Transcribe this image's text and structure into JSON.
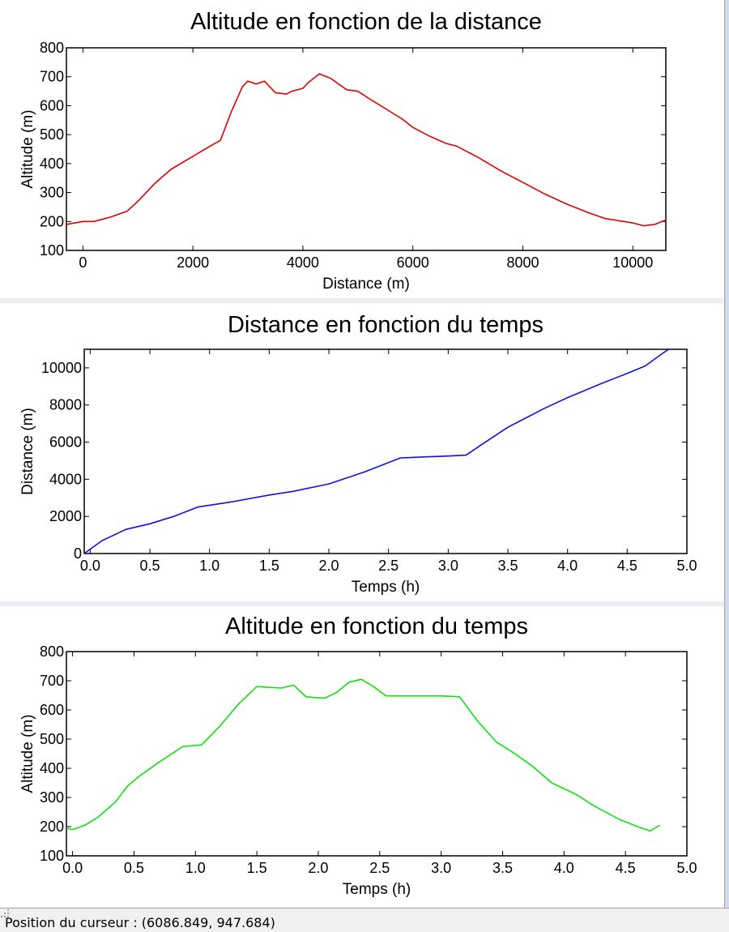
{
  "status_bar": {
    "cursor_label": "Position du curseur : (6086.849, 947.684)"
  },
  "chart_data": [
    {
      "type": "line",
      "title": "Altitude en fonction de la distance",
      "xlabel": "Distance (m)",
      "ylabel": "Altitude (m)",
      "xlim": [
        -300,
        10600
      ],
      "ylim": [
        100,
        800
      ],
      "x_ticks": [
        0,
        2000,
        4000,
        6000,
        8000,
        10000
      ],
      "x_tick_labels": [
        "0",
        "2000",
        "4000",
        "6000",
        "8000",
        "10000"
      ],
      "y_ticks": [
        100,
        200,
        300,
        400,
        500,
        600,
        700,
        800
      ],
      "y_tick_labels": [
        "100",
        "200",
        "300",
        "400",
        "500",
        "600",
        "700",
        "800"
      ],
      "grid": false,
      "color": "#e00000",
      "series": [
        {
          "x": [
            -300,
            0,
            200,
            500,
            800,
            1000,
            1300,
            1600,
            2000,
            2400,
            2500,
            2700,
            2900,
            3000,
            3150,
            3300,
            3500,
            3700,
            3800,
            4000,
            4100,
            4300,
            4500,
            4800,
            5000,
            5200,
            5500,
            5800,
            6000,
            6300,
            6600,
            6800,
            7200,
            7600,
            8000,
            8400,
            8800,
            9200,
            9500,
            10000,
            10200,
            10400,
            10600
          ],
          "y": [
            190,
            200,
            200,
            215,
            235,
            270,
            330,
            380,
            425,
            470,
            480,
            580,
            665,
            685,
            675,
            685,
            645,
            640,
            650,
            660,
            680,
            710,
            695,
            655,
            650,
            625,
            590,
            555,
            525,
            495,
            470,
            460,
            420,
            375,
            335,
            295,
            260,
            230,
            210,
            195,
            185,
            190,
            205
          ]
        }
      ]
    },
    {
      "type": "line",
      "title": "Distance en fonction du temps",
      "xlabel": "Temps (h)",
      "ylabel": "Distance (m)",
      "xlim": [
        -0.05,
        5.0
      ],
      "ylim": [
        0,
        11000
      ],
      "x_ticks": [
        0.0,
        0.5,
        1.0,
        1.5,
        2.0,
        2.5,
        3.0,
        3.5,
        4.0,
        4.5,
        5.0
      ],
      "x_tick_labels": [
        "0.0",
        "0.5",
        "1.0",
        "1.5",
        "2.0",
        "2.5",
        "3.0",
        "3.5",
        "4.0",
        "4.5",
        "5.0"
      ],
      "y_ticks": [
        0,
        2000,
        4000,
        6000,
        8000,
        10000
      ],
      "y_tick_labels": [
        "0",
        "2000",
        "4000",
        "6000",
        "8000",
        "10000"
      ],
      "grid": false,
      "color": "#1010e0",
      "series": [
        {
          "x": [
            -0.05,
            0.1,
            0.3,
            0.5,
            0.7,
            0.9,
            1.0,
            1.2,
            1.5,
            1.7,
            2.0,
            2.3,
            2.5,
            2.6,
            3.0,
            3.15,
            3.3,
            3.5,
            3.8,
            4.0,
            4.3,
            4.5,
            4.65,
            4.8,
            4.85
          ],
          "y": [
            0,
            700,
            1300,
            1600,
            2000,
            2500,
            2600,
            2800,
            3150,
            3350,
            3750,
            4400,
            4900,
            5150,
            5250,
            5300,
            5950,
            6800,
            7800,
            8400,
            9200,
            9700,
            10100,
            10800,
            11000
          ]
        }
      ]
    },
    {
      "type": "line",
      "title": "Altitude en fonction du temps",
      "xlabel": "Temps (h)",
      "ylabel": "Altitude (m)",
      "xlim": [
        -0.05,
        5.0
      ],
      "ylim": [
        100,
        800
      ],
      "x_ticks": [
        0.0,
        0.5,
        1.0,
        1.5,
        2.0,
        2.5,
        3.0,
        3.5,
        4.0,
        4.5,
        5.0
      ],
      "x_tick_labels": [
        "0.0",
        "0.5",
        "1.0",
        "1.5",
        "2.0",
        "2.5",
        "3.0",
        "3.5",
        "4.0",
        "4.5",
        "5.0"
      ],
      "y_ticks": [
        100,
        200,
        300,
        400,
        500,
        600,
        700,
        800
      ],
      "y_tick_labels": [
        "100",
        "200",
        "300",
        "400",
        "500",
        "600",
        "700",
        "800"
      ],
      "grid": false,
      "color": "#10e010",
      "series": [
        {
          "x": [
            -0.05,
            0.0,
            0.1,
            0.2,
            0.35,
            0.45,
            0.55,
            0.7,
            0.9,
            1.05,
            1.2,
            1.35,
            1.5,
            1.7,
            1.8,
            1.9,
            2.05,
            2.15,
            2.25,
            2.35,
            2.45,
            2.55,
            3.0,
            3.15,
            3.3,
            3.45,
            3.6,
            3.75,
            3.9,
            4.1,
            4.25,
            4.45,
            4.6,
            4.7,
            4.78
          ],
          "y": [
            195,
            190,
            205,
            230,
            285,
            340,
            375,
            420,
            475,
            480,
            545,
            620,
            680,
            675,
            685,
            645,
            640,
            660,
            695,
            705,
            680,
            648,
            648,
            645,
            560,
            490,
            450,
            405,
            350,
            310,
            270,
            225,
            200,
            185,
            205
          ]
        }
      ]
    }
  ]
}
